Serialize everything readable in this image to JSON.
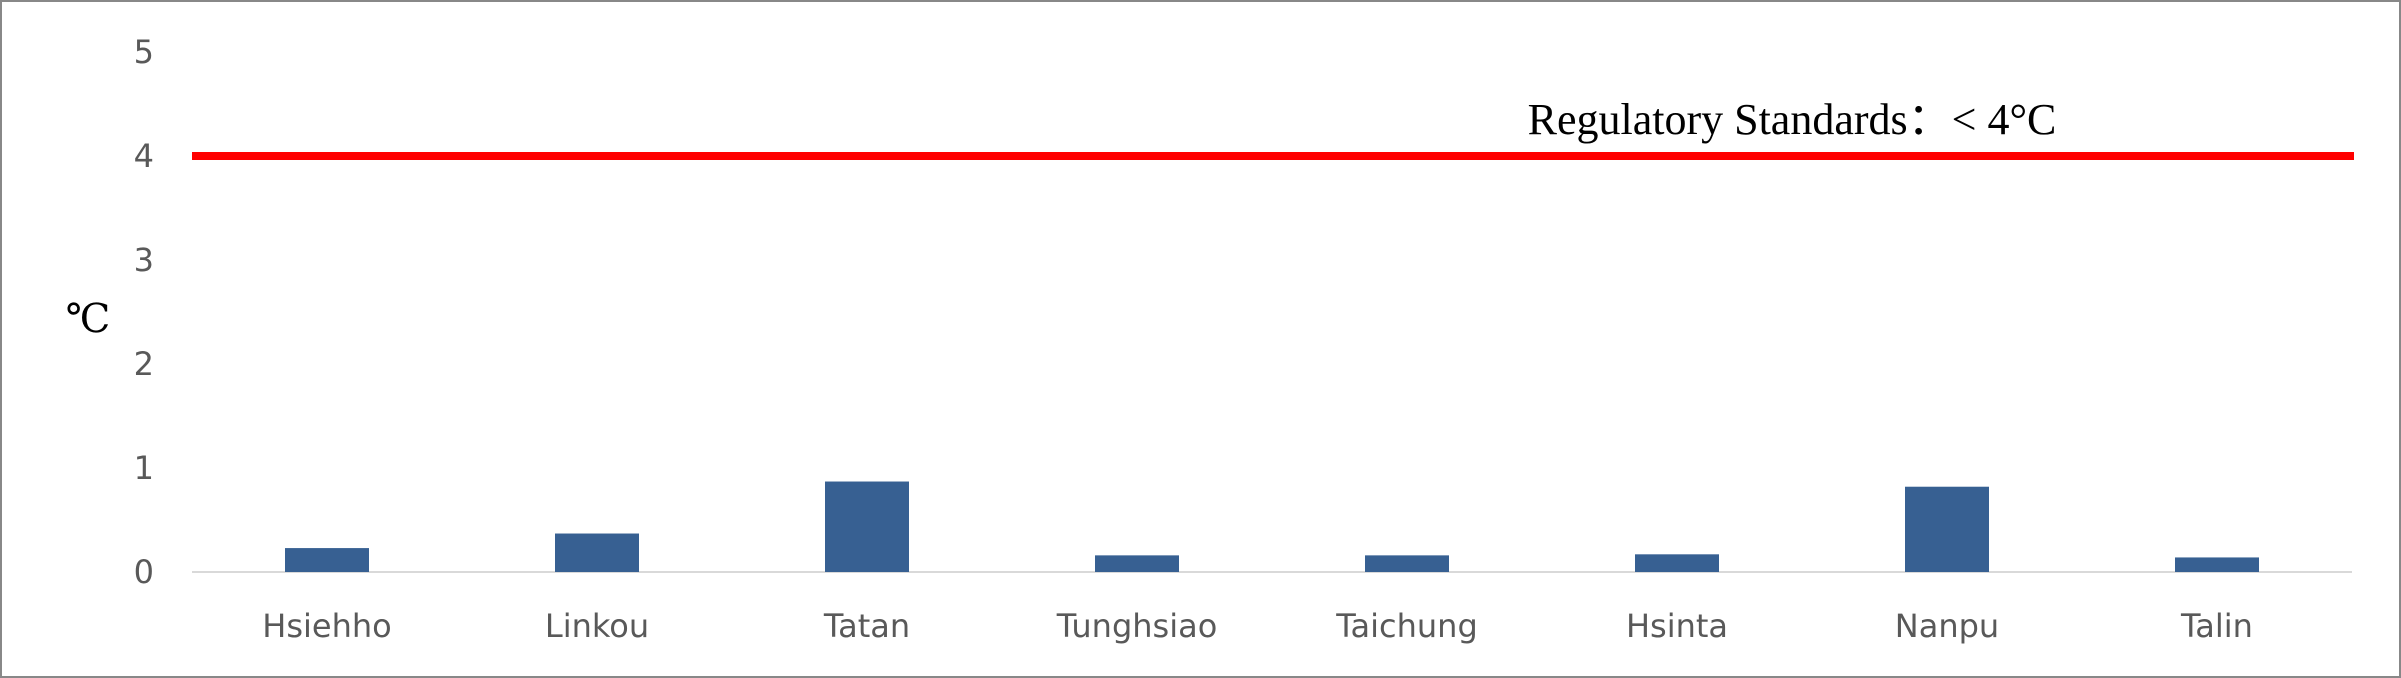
{
  "chart_data": {
    "type": "bar",
    "categories": [
      "Hsiehho",
      "Linkou",
      "Tatan",
      "Tunghsiao",
      "Taichung",
      "Hsinta",
      "Nanpu",
      "Talin"
    ],
    "values": [
      0.23,
      0.37,
      0.87,
      0.16,
      0.16,
      0.17,
      0.82,
      0.14
    ],
    "ylabel": "℃",
    "ylim": [
      0,
      5
    ],
    "yticks": [
      "0",
      "1",
      "2",
      "3",
      "4",
      "5"
    ],
    "grid": false,
    "bar_color": "#376092",
    "reference_line": {
      "value": 4,
      "color": "#ff0000",
      "label": "Regulatory Standards：< 4°C"
    }
  }
}
